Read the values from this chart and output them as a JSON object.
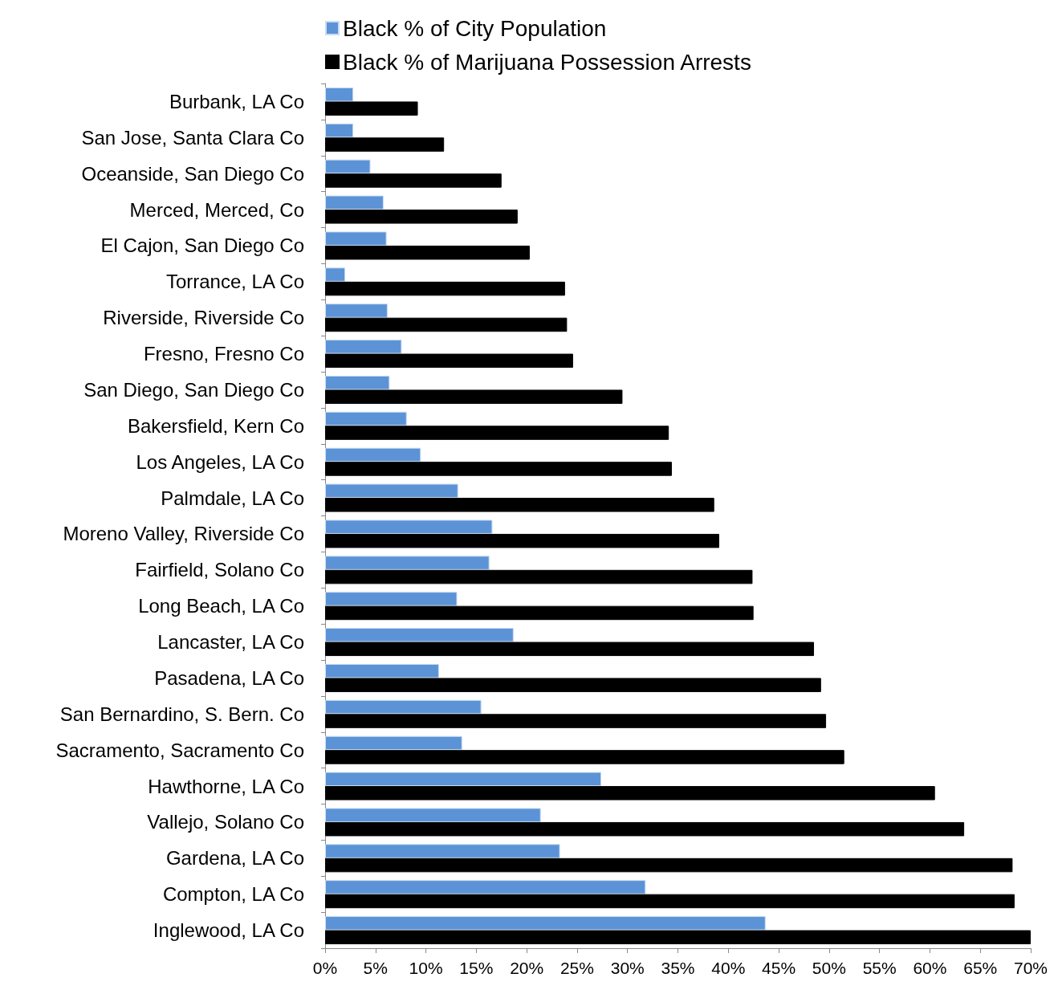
{
  "chart_data": {
    "type": "bar",
    "orientation": "horizontal",
    "categories": [
      "Burbank, LA Co",
      "San Jose, Santa Clara Co",
      "Oceanside, San Diego Co",
      "Merced, Merced, Co",
      "El Cajon, San Diego Co",
      "Torrance, LA Co",
      "Riverside, Riverside Co",
      "Fresno, Fresno Co",
      "San Diego, San Diego Co",
      "Bakersfield, Kern Co",
      "Los Angeles, LA Co",
      "Palmdale, LA Co",
      "Moreno Valley, Riverside Co",
      "Fairfield, Solano Co",
      "Long Beach, LA Co",
      "Lancaster, LA Co",
      "Pasadena, LA Co",
      "San Bernardino, S. Bern. Co",
      "Sacramento, Sacramento Co",
      "Hawthorne, LA Co",
      "Vallejo, Solano Co",
      "Gardena, LA Co",
      "Compton, LA Co",
      "Inglewood, LA Co"
    ],
    "series": [
      {
        "name": "Black % of City Population",
        "color": "#5b93d6",
        "values": [
          2.8,
          2.8,
          4.5,
          5.8,
          6.1,
          2.0,
          6.2,
          7.6,
          6.4,
          8.1,
          9.5,
          13.2,
          16.6,
          16.3,
          13.1,
          18.7,
          11.3,
          15.5,
          13.6,
          27.4,
          21.4,
          23.3,
          31.8,
          43.7
        ]
      },
      {
        "name": "Black % of Marijuana Possession Arrests",
        "color": "#000000",
        "values": [
          9.2,
          11.8,
          17.5,
          19.1,
          20.3,
          23.8,
          24.0,
          24.6,
          29.5,
          34.1,
          34.4,
          38.6,
          39.1,
          42.4,
          42.5,
          48.5,
          49.2,
          49.7,
          51.5,
          60.5,
          63.4,
          68.2,
          68.4,
          70.0
        ]
      }
    ],
    "xlim": [
      0,
      70
    ],
    "xticks": [
      {
        "value": 0,
        "label": "0%"
      },
      {
        "value": 5,
        "label": "5%"
      },
      {
        "value": 10,
        "label": "10%"
      },
      {
        "value": 15,
        "label": "15%"
      },
      {
        "value": 20,
        "label": "20%"
      },
      {
        "value": 25,
        "label": "25%"
      },
      {
        "value": 30,
        "label": "30%"
      },
      {
        "value": 35,
        "label": "35%"
      },
      {
        "value": 40,
        "label": "40%"
      },
      {
        "value": 45,
        "label": "45%"
      },
      {
        "value": 50,
        "label": "50%"
      },
      {
        "value": 55,
        "label": "55%"
      },
      {
        "value": 60,
        "label": "60%"
      },
      {
        "value": 65,
        "label": "65%"
      },
      {
        "value": 70,
        "label": "70%"
      }
    ],
    "grid": false,
    "legend": "top"
  }
}
